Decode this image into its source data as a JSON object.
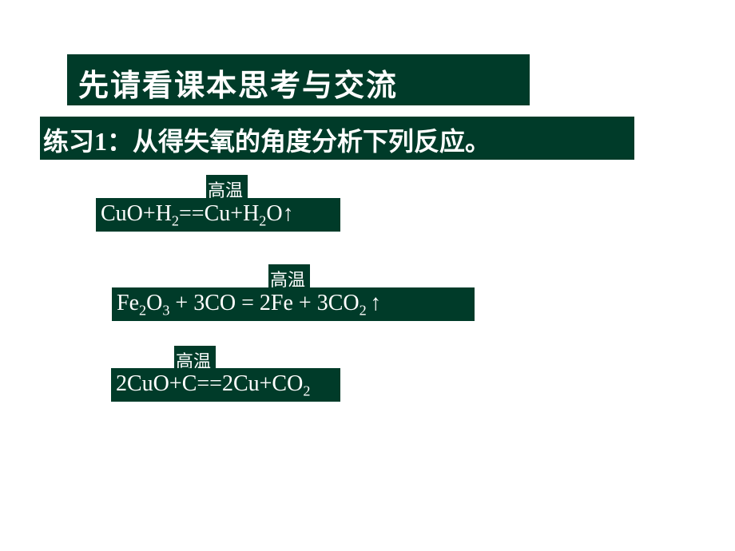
{
  "colors": {
    "block_bg": "#003b29",
    "text": "#ffffff",
    "page_bg": "#ffffff"
  },
  "typography": {
    "title_fontsize": 38,
    "subtitle_fontsize": 32,
    "condition_fontsize": 22,
    "equation_fontsize": 28,
    "title_weight": "bold",
    "subtitle_weight": "bold"
  },
  "title": "先请看课本思考与交流",
  "subtitle": "练习1：从得失氧的角度分析下列反应。",
  "equations": [
    {
      "condition": "高温",
      "formula_html": "CuO+H<sub>2</sub>==Cu+H<sub>2</sub>O↑"
    },
    {
      "condition": "高温",
      "formula_html": "Fe<sub>2</sub>O<sub>3</sub>  +  3CO  =  2Fe  +  3CO<sub>2 </sub>↑"
    },
    {
      "condition": "高温",
      "formula_html": "2CuO+C==2Cu+CO<sub>2</sub>"
    }
  ]
}
